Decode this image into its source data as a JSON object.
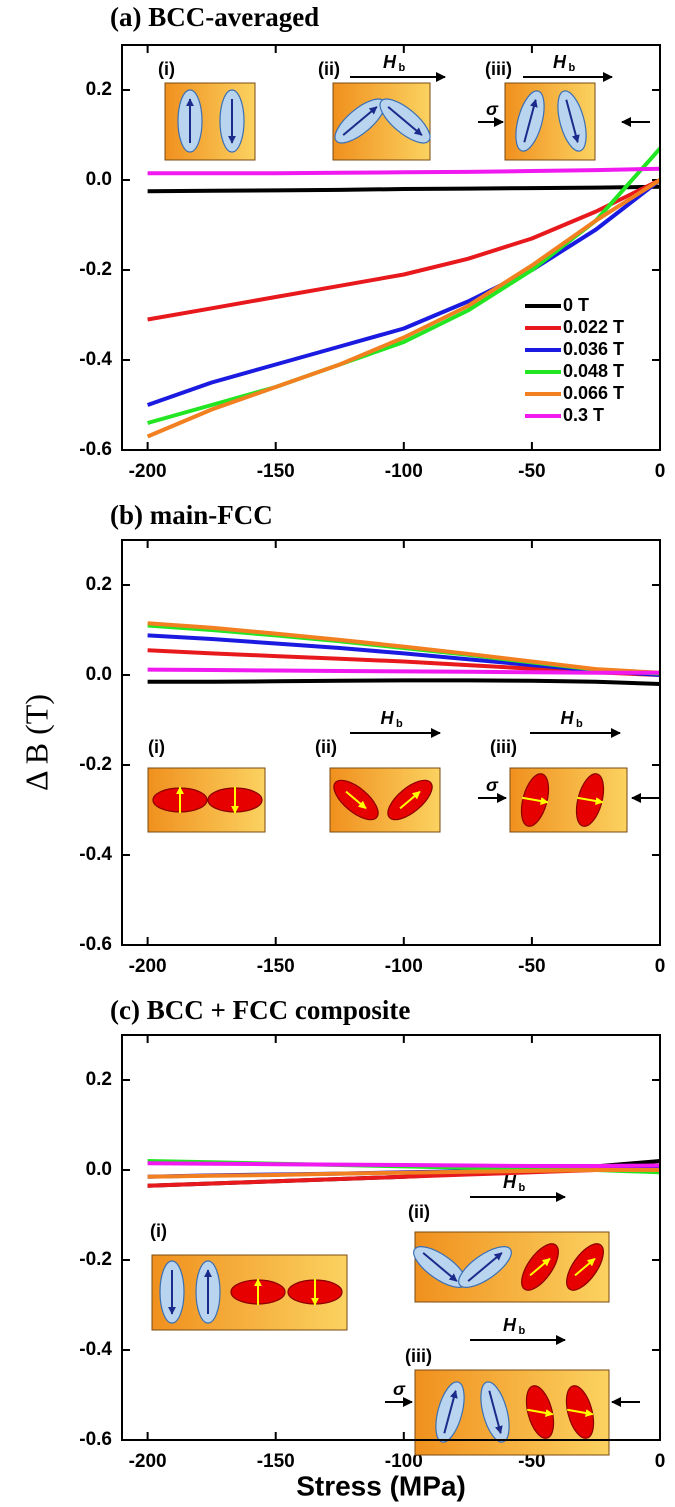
{
  "chart_data": [
    {
      "type": "line",
      "title": "(a) BCC-averaged",
      "x": [
        -200,
        -175,
        -150,
        -125,
        -100,
        -75,
        -50,
        -25,
        0
      ],
      "xlim": [
        -210,
        0
      ],
      "ylim": [
        -0.6,
        0.3
      ],
      "xticks": [
        -200,
        -150,
        -100,
        -50,
        0
      ],
      "yticks": [
        -0.6,
        -0.4,
        -0.2,
        {
          "value": 0,
          "label": "0.0"
        },
        0.2
      ],
      "legend": "lower right",
      "series": [
        {
          "name": "0 T",
          "color": "#000000",
          "values": [
            -0.025,
            -0.024,
            -0.023,
            -0.022,
            -0.02,
            -0.019,
            -0.018,
            -0.017,
            -0.015
          ]
        },
        {
          "name": "0.022 T",
          "color": "#e8191c",
          "values": [
            -0.31,
            -0.285,
            -0.26,
            -0.235,
            -0.21,
            -0.175,
            -0.13,
            -0.07,
            0.0
          ]
        },
        {
          "name": "0.036 T",
          "color": "#1a1ae0",
          "values": [
            -0.5,
            -0.45,
            -0.41,
            -0.37,
            -0.33,
            -0.27,
            -0.2,
            -0.11,
            0.0
          ]
        },
        {
          "name": "0.048 T",
          "color": "#22e622",
          "values": [
            -0.54,
            -0.5,
            -0.46,
            -0.41,
            -0.36,
            -0.29,
            -0.2,
            -0.09,
            0.07
          ]
        },
        {
          "name": "0.066 T",
          "color": "#f28020",
          "values": [
            -0.57,
            -0.51,
            -0.46,
            -0.41,
            -0.35,
            -0.28,
            -0.19,
            -0.09,
            0.0
          ]
        },
        {
          "name": "0.3 T",
          "color": "#f019f0",
          "values": [
            0.015,
            0.015,
            0.015,
            0.016,
            0.017,
            0.018,
            0.02,
            0.022,
            0.025
          ]
        }
      ],
      "insets": [
        {
          "label": "(i)"
        },
        {
          "label": "(ii)",
          "field": "H",
          "field_sub": "b"
        },
        {
          "label": "(iii)",
          "field": "H",
          "field_sub": "b",
          "stress": "σ"
        }
      ]
    },
    {
      "type": "line",
      "title": "(b) main-FCC",
      "ylabel": "Δ B (T)",
      "x": [
        -200,
        -175,
        -150,
        -125,
        -100,
        -75,
        -50,
        -25,
        0
      ],
      "xlim": [
        -210,
        0
      ],
      "ylim": [
        -0.6,
        0.3
      ],
      "xticks": [
        -200,
        -150,
        -100,
        -50,
        0
      ],
      "yticks": [
        -0.6,
        -0.4,
        -0.2,
        {
          "value": 0,
          "label": "0.0"
        },
        0.2
      ],
      "series": [
        {
          "color": "#000000",
          "values": [
            -0.015,
            -0.015,
            -0.014,
            -0.013,
            -0.012,
            -0.012,
            -0.013,
            -0.015,
            -0.02
          ]
        },
        {
          "color": "#e8191c",
          "values": [
            0.055,
            0.048,
            0.042,
            0.036,
            0.03,
            0.022,
            0.014,
            0.006,
            0.0
          ]
        },
        {
          "color": "#1a1ae0",
          "values": [
            0.088,
            0.08,
            0.07,
            0.06,
            0.048,
            0.035,
            0.022,
            0.01,
            0.0
          ]
        },
        {
          "color": "#22e622",
          "values": [
            0.11,
            0.1,
            0.088,
            0.075,
            0.06,
            0.045,
            0.028,
            0.012,
            0.003
          ]
        },
        {
          "color": "#f28020",
          "values": [
            0.115,
            0.105,
            0.092,
            0.078,
            0.063,
            0.047,
            0.03,
            0.013,
            0.005
          ]
        },
        {
          "color": "#f019f0",
          "values": [
            0.012,
            0.011,
            0.01,
            0.009,
            0.008,
            0.007,
            0.006,
            0.005,
            0.005
          ]
        }
      ],
      "insets": [
        {
          "label": "(i)"
        },
        {
          "label": "(ii)",
          "field": "H",
          "field_sub": "b"
        },
        {
          "label": "(iii)",
          "field": "H",
          "field_sub": "b",
          "stress": "σ"
        }
      ]
    },
    {
      "type": "line",
      "title": "(c) BCC + FCC composite",
      "xlabel": "Stress (MPa)",
      "x": [
        -200,
        -175,
        -150,
        -125,
        -100,
        -75,
        -50,
        -25,
        0
      ],
      "xlim": [
        -210,
        0
      ],
      "ylim": [
        -0.6,
        0.3
      ],
      "xticks": [
        -200,
        -150,
        -100,
        -50,
        0
      ],
      "yticks": [
        -0.6,
        -0.4,
        -0.2,
        {
          "value": 0,
          "label": "0.0"
        },
        0.2
      ],
      "series": [
        {
          "color": "#000000",
          "values": [
            -0.035,
            -0.03,
            -0.025,
            -0.02,
            -0.015,
            -0.008,
            0.0,
            0.008,
            0.02
          ]
        },
        {
          "color": "#e8191c",
          "values": [
            -0.035,
            -0.03,
            -0.025,
            -0.02,
            -0.015,
            -0.01,
            -0.005,
            0.0,
            0.005
          ]
        },
        {
          "color": "#1a1ae0",
          "values": [
            -0.015,
            -0.012,
            -0.01,
            -0.008,
            -0.005,
            -0.003,
            0.0,
            0.002,
            0.005
          ]
        },
        {
          "color": "#22e622",
          "values": [
            0.02,
            0.017,
            0.014,
            0.011,
            0.008,
            0.005,
            0.002,
            0.0,
            -0.005
          ]
        },
        {
          "color": "#f28020",
          "values": [
            -0.015,
            -0.013,
            -0.011,
            -0.008,
            -0.006,
            -0.004,
            -0.002,
            0.0,
            0.0
          ]
        },
        {
          "color": "#f019f0",
          "values": [
            0.015,
            0.014,
            0.013,
            0.012,
            0.011,
            0.01,
            0.009,
            0.009,
            0.01
          ]
        }
      ],
      "insets": [
        {
          "label": "(i)"
        },
        {
          "label": "(ii)",
          "field": "H",
          "field_sub": "b"
        },
        {
          "label": "(iii)",
          "field": "H",
          "field_sub": "b",
          "stress": "σ"
        }
      ]
    }
  ]
}
